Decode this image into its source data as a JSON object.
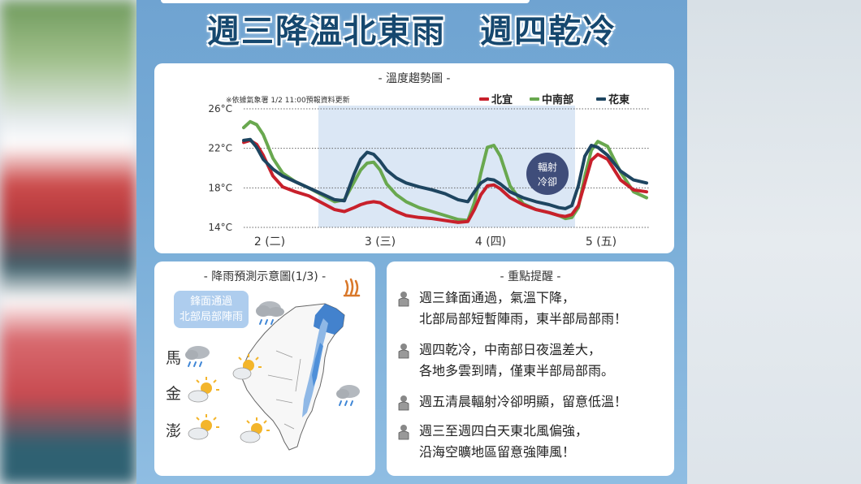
{
  "headline": "週三降溫北東雨　週四乾冷",
  "chart": {
    "title": "- 溫度趨勢圖 -",
    "note": "※依據氣象署 1/2  11:00預報資料更新",
    "annotation": "輻射冷卻"
  },
  "chart_data": {
    "type": "line",
    "title": "溫度趨勢圖",
    "y_ticks": [
      "26°C",
      "22°C",
      "18°C",
      "14°C"
    ],
    "ylim": [
      14,
      26
    ],
    "x_tick_labels": [
      "2 (二)",
      "3 (三)",
      "4 (四)",
      "5 (五)"
    ],
    "x_tick_positions": [
      0.4,
      2.1,
      3.8,
      5.5
    ],
    "xlim": [
      0,
      6.25
    ],
    "highlight_range": [
      1.15,
      5.1
    ],
    "legend_position": "top-right",
    "x": [
      0,
      0.1,
      0.2,
      0.3,
      0.45,
      0.6,
      0.8,
      1.0,
      1.2,
      1.4,
      1.55,
      1.7,
      1.8,
      1.9,
      2.0,
      2.1,
      2.2,
      2.35,
      2.5,
      2.7,
      2.9,
      3.1,
      3.3,
      3.45,
      3.55,
      3.65,
      3.75,
      3.85,
      3.95,
      4.1,
      4.3,
      4.5,
      4.7,
      4.85,
      4.95,
      5.05,
      5.15,
      5.25,
      5.35,
      5.45,
      5.6,
      5.8,
      6.0,
      6.2
    ],
    "series": [
      {
        "name": "北宜",
        "color": "#c8202b",
        "values": [
          22.6,
          22.8,
          22.4,
          21.3,
          19.2,
          18.1,
          17.6,
          17.2,
          16.5,
          15.8,
          15.6,
          16.0,
          16.3,
          16.5,
          16.6,
          16.5,
          16.1,
          15.6,
          15.2,
          15.0,
          14.9,
          14.7,
          14.5,
          14.6,
          15.8,
          17.3,
          18.2,
          18.3,
          17.9,
          17.0,
          16.3,
          15.8,
          15.5,
          15.2,
          15.1,
          15.3,
          16.2,
          18.5,
          20.8,
          21.4,
          20.9,
          18.8,
          17.8,
          17.6
        ]
      },
      {
        "name": "中南部",
        "color": "#69a84f",
        "values": [
          24.1,
          24.7,
          24.4,
          23.4,
          21.0,
          19.5,
          18.6,
          18.0,
          17.3,
          16.6,
          16.8,
          18.6,
          19.8,
          20.5,
          20.6,
          19.8,
          18.4,
          17.3,
          16.6,
          16.0,
          15.6,
          15.2,
          14.8,
          14.7,
          16.5,
          19.5,
          22.1,
          22.3,
          21.2,
          18.2,
          16.4,
          15.8,
          15.5,
          15.2,
          14.9,
          15.0,
          16.0,
          19.2,
          21.8,
          22.7,
          22.2,
          19.6,
          17.6,
          17.0
        ]
      },
      {
        "name": "花東",
        "color": "#1e4560",
        "values": [
          22.8,
          22.9,
          22.1,
          20.9,
          19.9,
          19.2,
          18.6,
          18.0,
          17.4,
          16.8,
          16.7,
          19.4,
          20.9,
          21.6,
          21.4,
          20.7,
          19.8,
          19.0,
          18.5,
          18.1,
          17.8,
          17.4,
          16.8,
          16.6,
          17.6,
          18.5,
          18.9,
          18.8,
          18.4,
          17.6,
          17.0,
          16.6,
          16.3,
          16.0,
          15.9,
          16.2,
          18.2,
          21.2,
          22.3,
          22.1,
          21.3,
          19.7,
          18.8,
          18.5
        ]
      }
    ]
  },
  "rain": {
    "title": "- 降雨預測示意圖(1/3) -",
    "badge_line1": "鋒面通過",
    "badge_line2": "北部局部陣雨",
    "islands": [
      "馬",
      "金",
      "澎"
    ]
  },
  "tips": {
    "title": "- 重點提醒 -",
    "items": [
      {
        "line1": "週三鋒面通過，氣溫下降，",
        "line2": "北部局部短暫陣雨，東半部局部雨！"
      },
      {
        "line1": "週四乾冷，中南部日夜溫差大，",
        "line2": "各地多雲到晴，僅東半部局部雨。"
      },
      {
        "line1": "週五清晨輻射冷卻明顯，留意低溫！",
        "line2": ""
      },
      {
        "line1": "週三至週四白天東北風偏強，",
        "line2": "沿海空曠地區留意強陣風！"
      }
    ]
  },
  "colors": {
    "poster_bg": "#77acd7",
    "headline": "#16486f",
    "highlight": "#dbe7f5",
    "annotation_bubble": "#3f4d7a",
    "rain_blue": "#3f86d6"
  }
}
